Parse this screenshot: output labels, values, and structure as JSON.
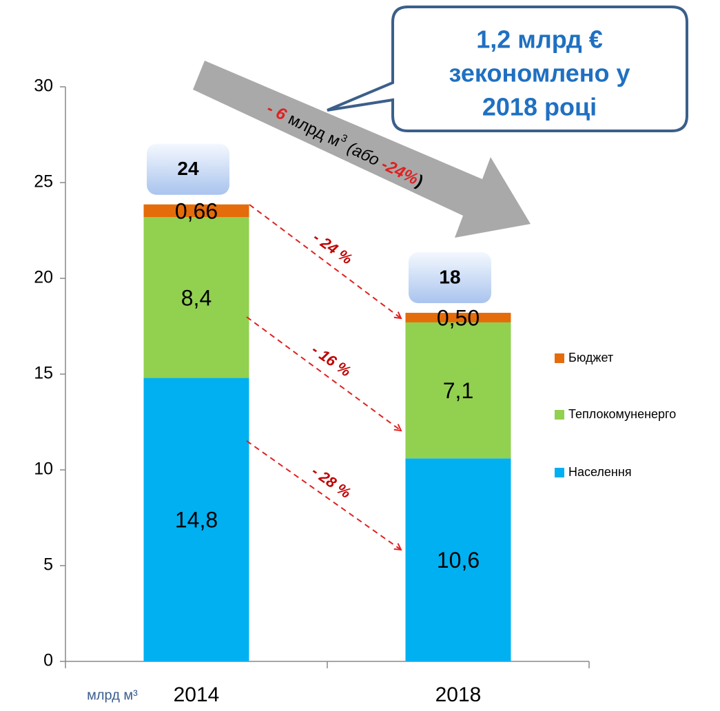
{
  "chart_data": {
    "type": "stacked_bar",
    "categories": [
      "2014",
      "2018"
    ],
    "series": [
      {
        "name": "Населення",
        "color": "#00b0f0",
        "values": [
          14.8,
          10.6
        ],
        "value_labels": [
          "14,8",
          "10,6"
        ]
      },
      {
        "name": "Теплокомуненерго",
        "color": "#92d050",
        "values": [
          8.4,
          7.1
        ],
        "value_labels": [
          "8,4",
          "7,1"
        ]
      },
      {
        "name": "Бюджет",
        "color": "#e46c0a",
        "values": [
          0.66,
          0.5
        ],
        "value_labels": [
          "0,66",
          "0,50"
        ]
      }
    ],
    "totals": [
      24,
      18
    ],
    "ylim": [
      0,
      30
    ],
    "yticks": [
      0,
      5,
      10,
      15,
      20,
      25,
      30
    ],
    "y_unit": "млрд м³",
    "reduction_labels": [
      "- 24 %",
      "- 16 %",
      "- 28 %"
    ],
    "trend_label": {
      "parts": [
        "- 6",
        " млрд м",
        "3",
        " (або ",
        "-24%",
        ")"
      ]
    },
    "callout": [
      "1,2 млрд €",
      "зекономлено у",
      "2018 році"
    ],
    "legend": "right"
  }
}
